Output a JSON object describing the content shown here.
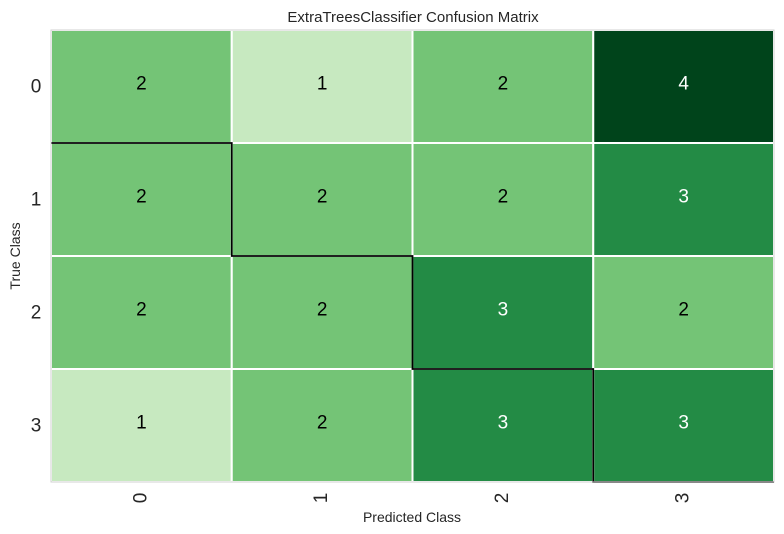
{
  "chart_data": {
    "type": "heatmap",
    "title": "ExtraTreesClassifier Confusion Matrix",
    "xlabel": "Predicted Class",
    "ylabel": "True Class",
    "x_categories": [
      "0",
      "1",
      "2",
      "3"
    ],
    "y_categories": [
      "0",
      "1",
      "2",
      "3"
    ],
    "values": [
      [
        2,
        1,
        2,
        4
      ],
      [
        2,
        2,
        2,
        3
      ],
      [
        2,
        2,
        3,
        2
      ],
      [
        1,
        2,
        3,
        3
      ]
    ],
    "diagonal_highlight": true,
    "grid": false,
    "legend": "none",
    "colors": {
      "1": "#c7e9c0",
      "2": "#74c476",
      "3": "#238b45",
      "4": "#00441b",
      "dark_text": "#000000",
      "light_text": "#ffffff",
      "cell_border": "#ffffff",
      "diagonal_line": "#000000",
      "axis_text": "#262626",
      "frame": "#d0d0d0"
    }
  }
}
